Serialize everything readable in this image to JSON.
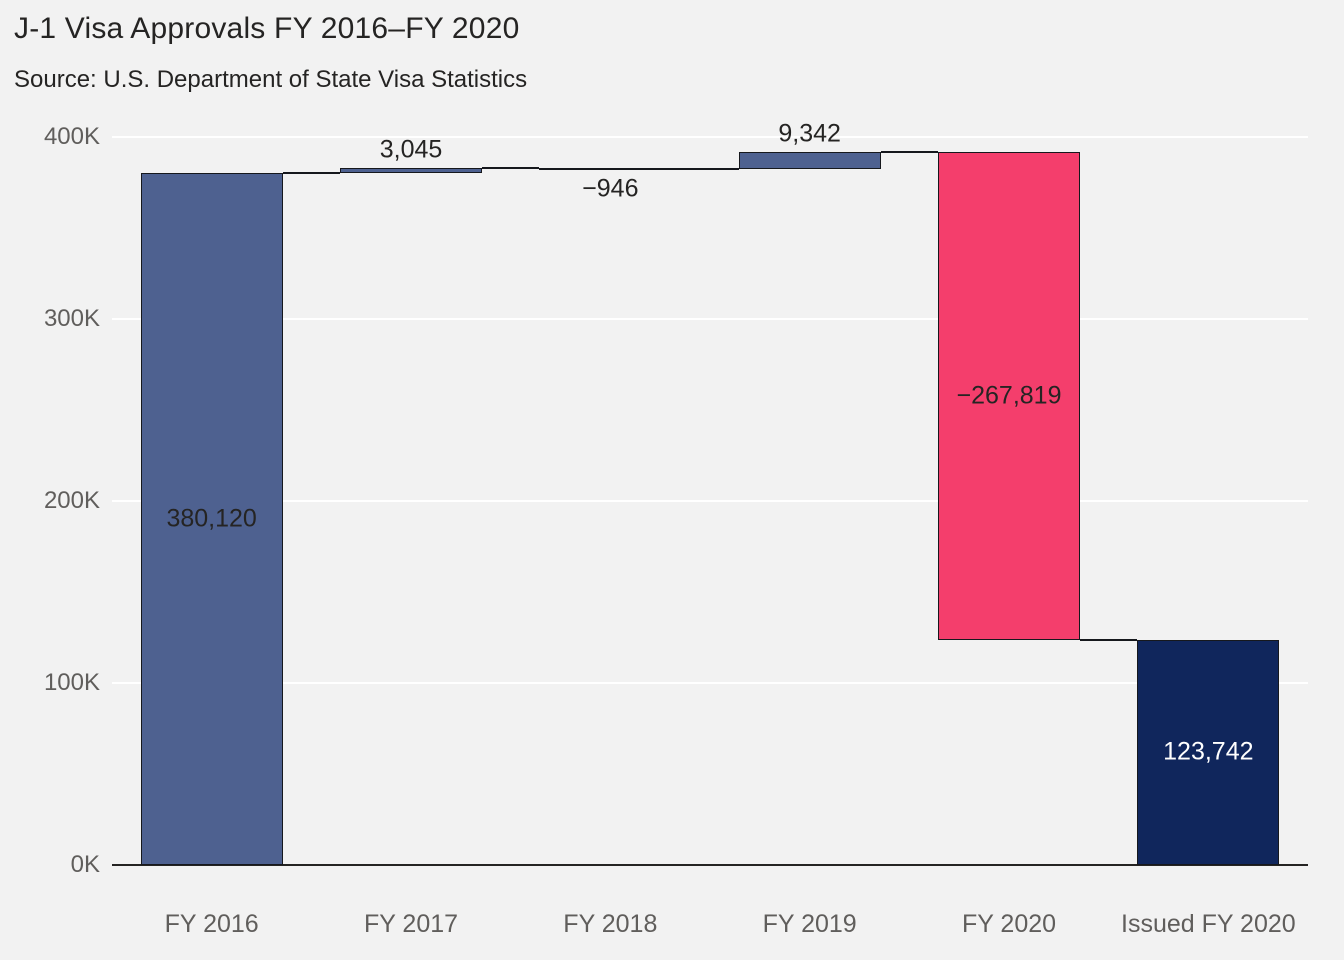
{
  "title": "J-1 Visa Approvals FY 2016–FY 2020",
  "subtitle": "Source: U.S. Department of State Visa Statistics",
  "colors": {
    "background": "#f2f2f2",
    "increase": "#4e6190",
    "decrease": "#f43e6c",
    "total": "#10265c",
    "axis_text": "#605e5c",
    "label_text": "#252423",
    "label_text_on_dark": "#ffffff",
    "gridline": "#ffffff",
    "connector": "#16181d"
  },
  "chart_data": {
    "type": "bar",
    "subtype": "waterfall",
    "title": "J-1 Visa Approvals FY 2016–FY 2020",
    "subtitle": "Source: U.S. Department of State Visa Statistics",
    "categories": [
      "FY 2016",
      "FY 2017",
      "FY 2018",
      "FY 2019",
      "FY 2020",
      "Issued FY 2020"
    ],
    "values": [
      380120,
      3045,
      -946,
      9342,
      -267819,
      123742
    ],
    "kinds": [
      "increase",
      "increase",
      "decrease",
      "increase",
      "decrease",
      "total"
    ],
    "labels": [
      "380,120",
      "3,045",
      "−946",
      "9,342",
      "−267,819",
      "123,742"
    ],
    "cumulative": [
      380120,
      383165,
      382219,
      391561,
      123742,
      123742
    ],
    "y_ticks": [
      "0K",
      "100K",
      "200K",
      "300K",
      "400K"
    ],
    "ylim": [
      0,
      400000
    ],
    "y_max": 400000,
    "xlabel": "",
    "ylabel": "",
    "grid": "horizontal",
    "legend": "none"
  }
}
